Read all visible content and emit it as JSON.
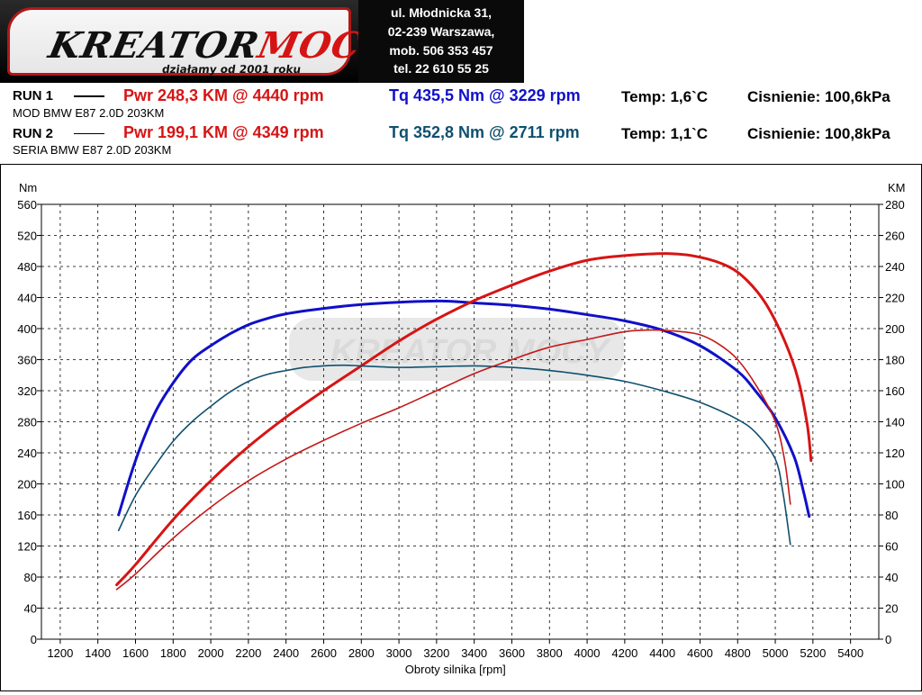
{
  "header": {
    "logo_text_main": "KREATOR",
    "logo_text_accent": "MOCY",
    "logo_tagline": "działamy od 2001 roku",
    "address": [
      "ul. Młodnicka 31,",
      "02-239  Warszawa,",
      "mob.  506 353 457",
      "tel.  22 610 55 25"
    ]
  },
  "runs": [
    {
      "label": "RUN 1",
      "power": "Pwr  248,3 KM @ 4440 rpm",
      "torque": "Tq 435,5 Nm @ 3229 rpm",
      "temp": "Temp: 1,6`C",
      "pressure": "Cisnienie: 100,6kPa",
      "description": "MOD BMW E87 2.0D 203KM"
    },
    {
      "label": "RUN 2",
      "power": "Pwr  199,1 KM @ 4349 rpm",
      "torque": "Tq 352,8 Nm @ 2711 rpm",
      "temp": "Temp: 1,1`C",
      "pressure": "Cisnienie: 100,8kPa",
      "description": "SERIA BMW E87 2.0D 203KM"
    }
  ],
  "colors": {
    "run1_power": "#d71414",
    "run1_torque": "#1010c8",
    "run2_power": "#c41818",
    "run2_torque": "#0f5070"
  },
  "chart_data": {
    "type": "line",
    "xlabel": "Obroty silnika [rpm]",
    "ylabel_left": "Nm",
    "ylabel_right": "KM",
    "xlim": [
      1100,
      5550
    ],
    "ylim_left": [
      0,
      560
    ],
    "ylim_right": [
      0,
      280
    ],
    "xticks": [
      1200,
      1400,
      1600,
      1800,
      2000,
      2200,
      2400,
      2600,
      2800,
      3000,
      3200,
      3400,
      3600,
      3800,
      4000,
      4200,
      4400,
      4600,
      4800,
      5000,
      5200,
      5400
    ],
    "yticks_left": [
      0,
      40,
      80,
      120,
      160,
      200,
      240,
      280,
      320,
      360,
      400,
      440,
      480,
      520,
      560
    ],
    "yticks_right": [
      0,
      20,
      40,
      60,
      80,
      100,
      120,
      140,
      160,
      180,
      200,
      220,
      240,
      260,
      280
    ],
    "grid": true,
    "watermark": "KREATOR MOCY",
    "series": [
      {
        "run": "RUN 1",
        "quantity": "torque",
        "axis": "left",
        "unit": "Nm",
        "color": "#1010c8",
        "width": 3,
        "x": [
          1510,
          1600,
          1700,
          1800,
          1900,
          2000,
          2100,
          2200,
          2300,
          2400,
          2600,
          2800,
          3000,
          3229,
          3400,
          3600,
          3800,
          4000,
          4200,
          4400,
          4600,
          4800,
          4900,
          5000,
          5100,
          5150,
          5180
        ],
        "y": [
          160,
          230,
          290,
          330,
          360,
          378,
          393,
          405,
          413,
          419,
          426,
          431,
          434,
          435.5,
          433,
          430,
          425,
          418,
          410,
          398,
          378,
          345,
          318,
          285,
          235,
          190,
          158
        ]
      },
      {
        "run": "RUN 1",
        "quantity": "power",
        "axis": "right",
        "unit": "KM",
        "color": "#d71414",
        "width": 3,
        "x": [
          1500,
          1600,
          1800,
          2000,
          2200,
          2400,
          2600,
          2800,
          3000,
          3200,
          3400,
          3600,
          3800,
          4000,
          4200,
          4440,
          4600,
          4750,
          4850,
          4950,
          5050,
          5120,
          5170,
          5190
        ],
        "y": [
          35,
          48,
          77,
          102,
          124,
          143,
          160,
          176,
          192,
          206,
          218,
          228,
          237,
          244,
          247,
          248.3,
          246,
          240,
          231,
          216,
          192,
          168,
          138,
          115
        ]
      },
      {
        "run": "RUN 2",
        "quantity": "torque",
        "axis": "left",
        "unit": "Nm",
        "color": "#0f5070",
        "width": 1.6,
        "x": [
          1510,
          1600,
          1700,
          1800,
          1900,
          2000,
          2100,
          2200,
          2300,
          2400,
          2500,
          2600,
          2711,
          2800,
          3000,
          3200,
          3400,
          3600,
          3800,
          4000,
          4200,
          4400,
          4600,
          4800,
          4900,
          5000,
          5040,
          5080
        ],
        "y": [
          140,
          185,
          222,
          255,
          280,
          300,
          318,
          332,
          341,
          346,
          350,
          352,
          352.8,
          352,
          350,
          351,
          352,
          350,
          346,
          340,
          332,
          320,
          305,
          283,
          265,
          232,
          190,
          122
        ]
      },
      {
        "run": "RUN 2",
        "quantity": "power",
        "axis": "right",
        "unit": "KM",
        "color": "#c41818",
        "width": 1.6,
        "x": [
          1500,
          1600,
          1800,
          2000,
          2200,
          2400,
          2600,
          2800,
          3000,
          3200,
          3400,
          3600,
          3800,
          4000,
          4200,
          4349,
          4500,
          4600,
          4700,
          4800,
          4900,
          5000,
          5050,
          5080
        ],
        "y": [
          32,
          42,
          65,
          85,
          102,
          116,
          128,
          139,
          149,
          160,
          171,
          180,
          188,
          193,
          198,
          199.1,
          198,
          196,
          190,
          180,
          163,
          140,
          115,
          87
        ]
      }
    ]
  }
}
